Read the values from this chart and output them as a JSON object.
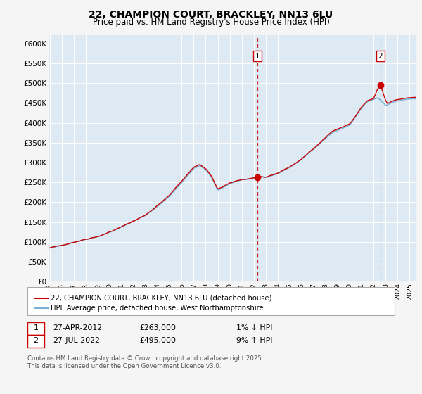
{
  "title1": "22, CHAMPION COURT, BRACKLEY, NN13 6LU",
  "title2": "Price paid vs. HM Land Registry's House Price Index (HPI)",
  "legend1": "22, CHAMPION COURT, BRACKLEY, NN13 6LU (detached house)",
  "legend2": "HPI: Average price, detached house, West Northamptonshire",
  "annotation1_date": "27-APR-2012",
  "annotation1_price": "£263,000",
  "annotation1_hpi": "1% ↓ HPI",
  "annotation2_date": "27-JUL-2022",
  "annotation2_price": "£495,000",
  "annotation2_hpi": "9% ↑ HPI",
  "copyright": "Contains HM Land Registry data © Crown copyright and database right 2025.\nThis data is licensed under the Open Government Licence v3.0.",
  "sale1_date_num": 2012.32,
  "sale1_price": 263000,
  "sale2_date_num": 2022.57,
  "sale2_price": 495000,
  "line_color_red": "#cc0000",
  "line_color_blue": "#7ab0d4",
  "bg_color": "#ddeaf4",
  "grid_color": "#ffffff",
  "vline1_color": "#cc0000",
  "vline2_color": "#7ab0d4",
  "fig_bg": "#f5f5f5",
  "ylim": [
    0,
    620000
  ],
  "xlim_start": 1994.9,
  "xlim_end": 2025.5,
  "xtick_years": [
    1995,
    1996,
    1997,
    1998,
    1999,
    2000,
    2001,
    2002,
    2003,
    2004,
    2005,
    2006,
    2007,
    2008,
    2009,
    2010,
    2011,
    2012,
    2013,
    2014,
    2015,
    2016,
    2017,
    2018,
    2019,
    2020,
    2021,
    2022,
    2023,
    2024,
    2025
  ]
}
